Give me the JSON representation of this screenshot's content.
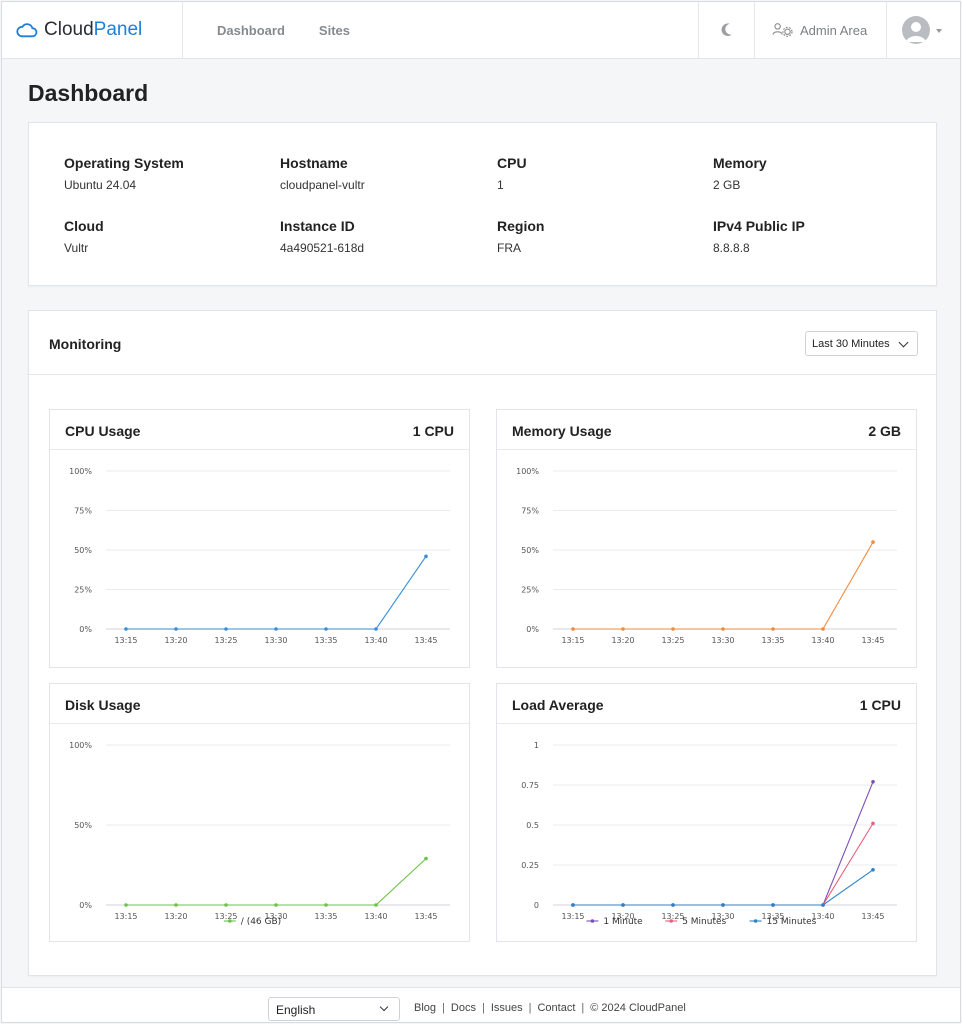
{
  "header": {
    "logo_part1": "Cloud",
    "logo_part2": "Panel",
    "nav": [
      "Dashboard",
      "Sites"
    ],
    "admin_label": "Admin Area",
    "icons": {
      "theme": "moon-icon",
      "admin": "users-gear-icon",
      "user": "avatar-icon",
      "logo": "cloud-icon"
    }
  },
  "page_title": "Dashboard",
  "info": [
    {
      "label": "Operating System",
      "value": "Ubuntu 24.04"
    },
    {
      "label": "Hostname",
      "value": "cloudpanel-vultr"
    },
    {
      "label": "CPU",
      "value": "1"
    },
    {
      "label": "Memory",
      "value": "2 GB"
    },
    {
      "label": "Cloud",
      "value": "Vultr"
    },
    {
      "label": "Instance ID",
      "value": "4a490521-618d"
    },
    {
      "label": "Region",
      "value": "FRA"
    },
    {
      "label": "IPv4 Public IP",
      "value": "8.8.8.8"
    }
  ],
  "monitoring": {
    "title": "Monitoring",
    "range": "Last 30 Minutes"
  },
  "colors": {
    "accent": "#1d7fd6",
    "cpu": "#3a8ed6",
    "memory": "#f08a3c",
    "disk": "#6cc24a",
    "load1": "#7b4fb5",
    "load5": "#e8607d",
    "load15": "#2d83c9"
  },
  "chart_data": [
    {
      "type": "line",
      "title": "CPU Usage",
      "meta": "1 CPU",
      "x": [
        "13:15",
        "13:20",
        "13:25",
        "13:30",
        "13:35",
        "13:40",
        "13:45"
      ],
      "yticks": [
        "100%",
        "75%",
        "50%",
        "25%",
        "0%"
      ],
      "ylim": [
        0,
        100
      ],
      "series": [
        {
          "values": [
            0,
            0,
            0,
            0,
            0,
            0,
            46
          ]
        }
      ]
    },
    {
      "type": "line",
      "title": "Memory Usage",
      "meta": "2 GB",
      "x": [
        "13:15",
        "13:20",
        "13:25",
        "13:30",
        "13:35",
        "13:40",
        "13:45"
      ],
      "yticks": [
        "100%",
        "75%",
        "50%",
        "25%",
        "0%"
      ],
      "ylim": [
        0,
        100
      ],
      "series": [
        {
          "values": [
            0,
            0,
            0,
            0,
            0,
            0,
            55
          ]
        }
      ]
    },
    {
      "type": "line",
      "title": "Disk Usage",
      "meta": "",
      "x": [
        "13:15",
        "13:20",
        "13:25",
        "13:30",
        "13:35",
        "13:40",
        "13:45"
      ],
      "yticks": [
        "100%",
        "50%",
        "0%"
      ],
      "ylim": [
        0,
        100
      ],
      "legend_position": "bottom",
      "series": [
        {
          "name": "/ (46 GB)",
          "values": [
            0,
            0,
            0,
            0,
            0,
            0,
            29
          ]
        }
      ]
    },
    {
      "type": "line",
      "title": "Load Average",
      "meta": "1 CPU",
      "x": [
        "13:15",
        "13:20",
        "13:25",
        "13:30",
        "13:35",
        "13:40",
        "13:45"
      ],
      "yticks": [
        "1",
        "0.75",
        "0.5",
        "0.25",
        "0"
      ],
      "ylim": [
        0,
        1
      ],
      "legend_position": "bottom",
      "series": [
        {
          "name": "1 Minute",
          "values": [
            0,
            0,
            0,
            0,
            0,
            0,
            0.77
          ]
        },
        {
          "name": "5 Minutes",
          "values": [
            0,
            0,
            0,
            0,
            0,
            0,
            0.51
          ]
        },
        {
          "name": "15 Minutes",
          "values": [
            0,
            0,
            0,
            0,
            0,
            0,
            0.22
          ]
        }
      ]
    }
  ],
  "footer": {
    "language": "English",
    "links": [
      "Blog",
      "Docs",
      "Issues",
      "Contact"
    ],
    "copyright": "© 2024  CloudPanel"
  }
}
